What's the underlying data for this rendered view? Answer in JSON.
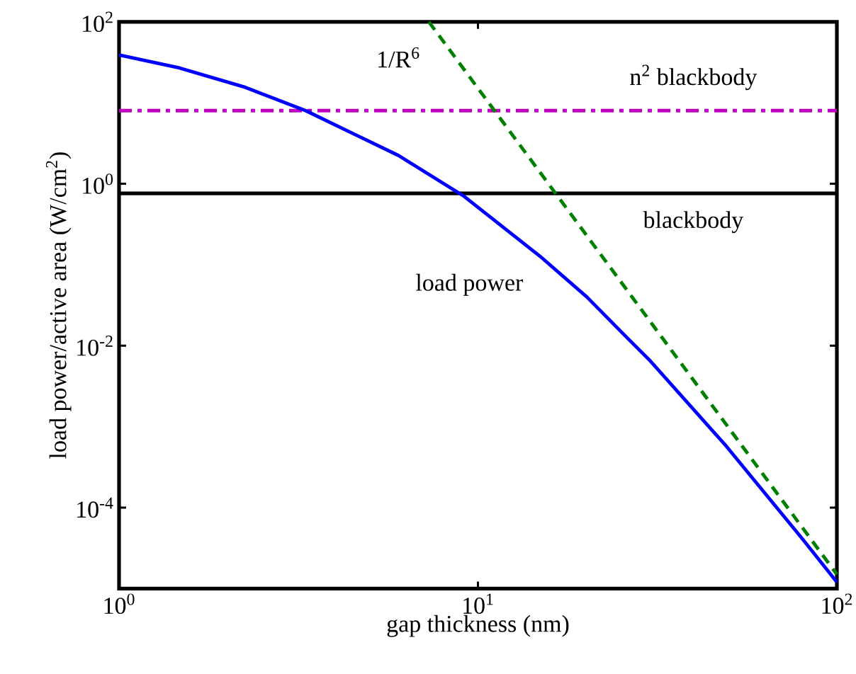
{
  "chart_data": {
    "type": "line",
    "xlabel": "gap thickness (nm)",
    "ylabel": "load power/active area (W/cm$^{2}$)",
    "log": "xy",
    "xlim": [
      1,
      100
    ],
    "ylim": [
      1e-05,
      100
    ],
    "xticks": [
      {
        "value": 1,
        "label": "10$^{0}$"
      },
      {
        "value": 10,
        "label": "10$^{1}$"
      },
      {
        "value": 100,
        "label": "10$^{2}$"
      }
    ],
    "yticks": [
      {
        "value": 0.0001,
        "label": "10$^{-4}$"
      },
      {
        "value": 0.01,
        "label": "10$^{-2}$"
      },
      {
        "value": 1,
        "label": "10$^{0}$"
      },
      {
        "value": 100,
        "label": "10$^{2}$"
      }
    ],
    "series": [
      {
        "name": "load power",
        "color": "#0000ff",
        "line_style": "solid",
        "x": [
          1,
          1.48,
          2.25,
          3.31,
          6.0,
          9.15,
          14.9,
          20.1,
          26.1,
          30.1,
          49.1,
          80.2,
          100
        ],
        "values": [
          39,
          26.8,
          15.5,
          8,
          2.24,
          0.7,
          0.127,
          0.04,
          0.0124,
          0.0066,
          0.00058,
          4.1e-05,
          1.2e-05
        ]
      },
      {
        "name": "1/R$^{6}$",
        "color": "#007f00",
        "line_style": "dashed",
        "x": [
          7.3,
          100
        ],
        "values": [
          100,
          1.5e-05
        ]
      }
    ],
    "ref_lines": [
      {
        "axis": "y",
        "value": 0.76,
        "label": "blackbody",
        "color": "#000000",
        "line_style": "solid"
      },
      {
        "axis": "y",
        "value": 8,
        "label": "n$^{2}$ blackbody",
        "color": "#bf00bf",
        "line_style": "dashdot"
      }
    ]
  }
}
